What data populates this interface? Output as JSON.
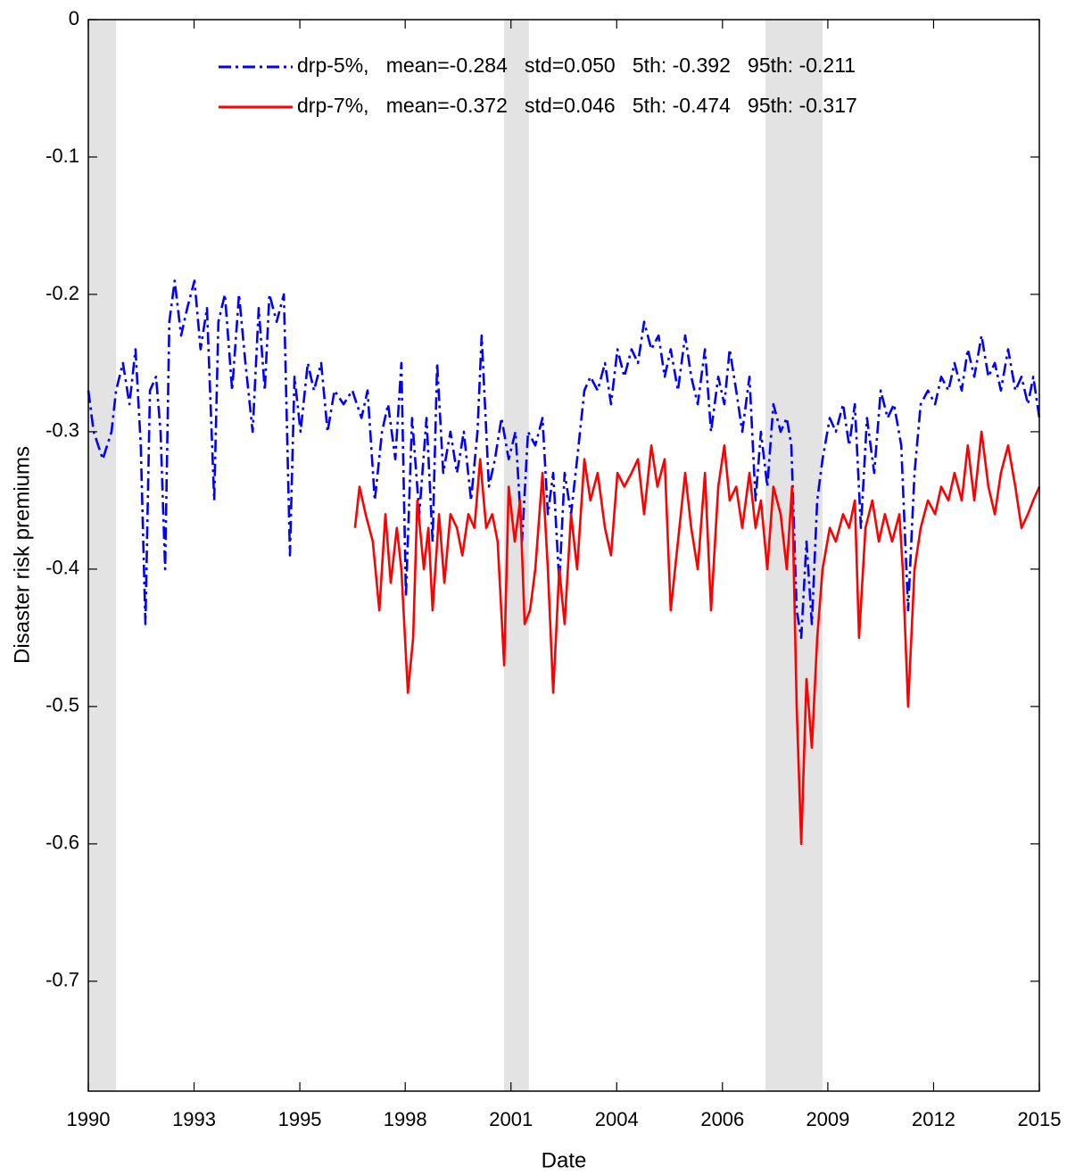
{
  "chart_data": {
    "type": "line",
    "xlabel": "Date",
    "ylabel": "Disaster risk premiums",
    "xlim": [
      1990,
      2015
    ],
    "ylim": [
      -0.78,
      0
    ],
    "xticks": [
      1990,
      {
        "value": 1992.78,
        "label": "1993"
      },
      {
        "value": 1995.56,
        "label": "1995"
      },
      {
        "value": 1998.33,
        "label": "1998"
      },
      {
        "value": 2001.11,
        "label": "2001"
      },
      {
        "value": 2003.89,
        "label": "2004"
      },
      {
        "value": 2006.67,
        "label": "2006"
      },
      {
        "value": 2009.44,
        "label": "2009"
      },
      {
        "value": 2012.22,
        "label": "2012"
      },
      2015
    ],
    "yticks": [
      0,
      -0.1,
      -0.2,
      -0.3,
      -0.4,
      -0.5,
      -0.6,
      -0.7
    ],
    "grid": false,
    "legend": "top",
    "shading": [
      [
        1990,
        1990.73
      ],
      [
        2000.93,
        2001.58
      ],
      [
        2007.8,
        2009.3
      ]
    ],
    "shading_color": "#e3e3e3",
    "series": [
      {
        "name": "drp-5%,   mean=-0.284   std=0.050   5th: -0.392   95th: -0.211",
        "color": "#0000ff",
        "style": "dash-dot",
        "x": [
          1990.0,
          1990.14,
          1990.38,
          1990.61,
          1990.73,
          1990.91,
          1991.08,
          1991.24,
          1991.38,
          1991.5,
          1991.62,
          1991.78,
          1991.9,
          1992.02,
          1992.13,
          1992.27,
          1992.44,
          1992.6,
          1992.79,
          1992.95,
          1993.12,
          1993.31,
          1993.42,
          1993.59,
          1993.78,
          1993.96,
          1994.13,
          1994.32,
          1994.48,
          1994.64,
          1994.76,
          1994.95,
          1995.14,
          1995.3,
          1995.42,
          1995.58,
          1995.77,
          1995.93,
          1996.12,
          1996.29,
          1996.47,
          1996.71,
          1996.94,
          1997.18,
          1997.34,
          1997.53,
          1997.72,
          1997.88,
          1998.07,
          1998.23,
          1998.35,
          1998.51,
          1998.7,
          1998.89,
          1999.05,
          1999.17,
          1999.33,
          1999.52,
          1999.69,
          1999.87,
          2000.06,
          2000.23,
          2000.34,
          2000.53,
          2000.69,
          2000.86,
          2001.05,
          2001.23,
          2001.4,
          2001.56,
          2001.75,
          2001.94,
          2002.08,
          2002.22,
          2002.38,
          2002.52,
          2002.69,
          2002.85,
          2003.04,
          2003.2,
          2003.39,
          2003.58,
          2003.74,
          2003.91,
          2004.09,
          2004.28,
          2004.45,
          2004.61,
          2004.8,
          2004.99,
          2005.15,
          2005.31,
          2005.5,
          2005.69,
          2005.85,
          2006.02,
          2006.21,
          2006.37,
          2006.56,
          2006.72,
          2006.86,
          2007.03,
          2007.19,
          2007.38,
          2007.54,
          2007.68,
          2007.85,
          2008.01,
          2008.2,
          2008.36,
          2008.48,
          2008.62,
          2008.74,
          2008.88,
          2009.02,
          2009.16,
          2009.3,
          2009.49,
          2009.65,
          2009.84,
          2010.0,
          2010.15,
          2010.31,
          2010.47,
          2010.66,
          2010.83,
          2011.01,
          2011.18,
          2011.37,
          2011.55,
          2011.72,
          2011.88,
          2012.07,
          2012.26,
          2012.42,
          2012.61,
          2012.77,
          2012.96,
          2013.12,
          2013.29,
          2013.48,
          2013.66,
          2013.83,
          2013.99,
          2014.18,
          2014.37,
          2014.53,
          2014.7,
          2014.84,
          2015.0
        ],
        "values": [
          -0.27,
          -0.3,
          -0.32,
          -0.3,
          -0.27,
          -0.25,
          -0.28,
          -0.24,
          -0.31,
          -0.44,
          -0.27,
          -0.26,
          -0.3,
          -0.4,
          -0.22,
          -0.19,
          -0.23,
          -0.21,
          -0.19,
          -0.24,
          -0.21,
          -0.35,
          -0.22,
          -0.2,
          -0.27,
          -0.2,
          -0.25,
          -0.3,
          -0.21,
          -0.27,
          -0.2,
          -0.22,
          -0.2,
          -0.39,
          -0.26,
          -0.3,
          -0.25,
          -0.27,
          -0.25,
          -0.3,
          -0.27,
          -0.28,
          -0.27,
          -0.29,
          -0.27,
          -0.35,
          -0.3,
          -0.28,
          -0.32,
          -0.25,
          -0.42,
          -0.29,
          -0.36,
          -0.29,
          -0.38,
          -0.25,
          -0.33,
          -0.3,
          -0.33,
          -0.3,
          -0.35,
          -0.3,
          -0.23,
          -0.34,
          -0.32,
          -0.29,
          -0.32,
          -0.3,
          -0.38,
          -0.3,
          -0.31,
          -0.29,
          -0.36,
          -0.33,
          -0.41,
          -0.33,
          -0.36,
          -0.32,
          -0.27,
          -0.26,
          -0.27,
          -0.25,
          -0.28,
          -0.24,
          -0.26,
          -0.24,
          -0.25,
          -0.22,
          -0.24,
          -0.23,
          -0.26,
          -0.24,
          -0.27,
          -0.23,
          -0.26,
          -0.28,
          -0.24,
          -0.3,
          -0.26,
          -0.28,
          -0.24,
          -0.27,
          -0.3,
          -0.26,
          -0.35,
          -0.3,
          -0.34,
          -0.28,
          -0.3,
          -0.29,
          -0.31,
          -0.43,
          -0.45,
          -0.38,
          -0.44,
          -0.35,
          -0.32,
          -0.29,
          -0.3,
          -0.28,
          -0.31,
          -0.28,
          -0.37,
          -0.29,
          -0.33,
          -0.27,
          -0.29,
          -0.28,
          -0.31,
          -0.43,
          -0.33,
          -0.28,
          -0.27,
          -0.28,
          -0.26,
          -0.27,
          -0.25,
          -0.27,
          -0.24,
          -0.26,
          -0.23,
          -0.26,
          -0.25,
          -0.27,
          -0.24,
          -0.27,
          -0.26,
          -0.28,
          -0.26,
          -0.29
        ]
      },
      {
        "name": "drp-7%,   mean=-0.372   std=0.046   5th: -0.474   95th: -0.317",
        "color": "#ff0000",
        "style": "solid",
        "x": [
          1997.01,
          1997.13,
          1997.29,
          1997.48,
          1997.65,
          1997.81,
          1997.95,
          1998.11,
          1998.23,
          1998.4,
          1998.54,
          1998.65,
          1998.82,
          1998.94,
          1999.05,
          1999.22,
          1999.36,
          1999.52,
          1999.69,
          1999.83,
          1999.99,
          2000.15,
          2000.3,
          2000.46,
          2000.62,
          2000.76,
          2000.93,
          2001.05,
          2001.21,
          2001.35,
          2001.47,
          2001.61,
          2001.75,
          2001.94,
          2002.08,
          2002.22,
          2002.38,
          2002.52,
          2002.69,
          2002.85,
          2003.04,
          2003.2,
          2003.39,
          2003.58,
          2003.74,
          2003.91,
          2004.09,
          2004.28,
          2004.45,
          2004.61,
          2004.8,
          2004.96,
          2005.15,
          2005.31,
          2005.5,
          2005.69,
          2005.85,
          2006.02,
          2006.21,
          2006.37,
          2006.56,
          2006.72,
          2006.86,
          2007.03,
          2007.19,
          2007.38,
          2007.54,
          2007.68,
          2007.85,
          2008.01,
          2008.2,
          2008.36,
          2008.5,
          2008.62,
          2008.74,
          2008.88,
          2009.02,
          2009.16,
          2009.3,
          2009.49,
          2009.65,
          2009.84,
          2010.0,
          2010.15,
          2010.26,
          2010.43,
          2010.61,
          2010.78,
          2010.94,
          2011.13,
          2011.32,
          2011.41,
          2011.55,
          2011.72,
          2011.88,
          2012.07,
          2012.26,
          2012.42,
          2012.61,
          2012.77,
          2012.96,
          2013.12,
          2013.29,
          2013.48,
          2013.66,
          2013.83,
          2013.99,
          2014.18,
          2014.37,
          2014.53,
          2014.7,
          2014.84,
          2015.0
        ],
        "values": [
          -0.37,
          -0.34,
          -0.36,
          -0.38,
          -0.43,
          -0.36,
          -0.41,
          -0.37,
          -0.4,
          -0.49,
          -0.45,
          -0.35,
          -0.4,
          -0.37,
          -0.43,
          -0.36,
          -0.41,
          -0.36,
          -0.37,
          -0.39,
          -0.36,
          -0.37,
          -0.32,
          -0.37,
          -0.36,
          -0.38,
          -0.47,
          -0.34,
          -0.38,
          -0.35,
          -0.44,
          -0.43,
          -0.4,
          -0.33,
          -0.4,
          -0.49,
          -0.4,
          -0.44,
          -0.36,
          -0.4,
          -0.32,
          -0.35,
          -0.33,
          -0.37,
          -0.39,
          -0.33,
          -0.34,
          -0.33,
          -0.32,
          -0.36,
          -0.31,
          -0.34,
          -0.32,
          -0.43,
          -0.38,
          -0.33,
          -0.37,
          -0.4,
          -0.33,
          -0.43,
          -0.34,
          -0.31,
          -0.35,
          -0.34,
          -0.37,
          -0.33,
          -0.37,
          -0.35,
          -0.4,
          -0.34,
          -0.36,
          -0.4,
          -0.34,
          -0.5,
          -0.6,
          -0.48,
          -0.53,
          -0.45,
          -0.4,
          -0.37,
          -0.38,
          -0.36,
          -0.37,
          -0.35,
          -0.45,
          -0.37,
          -0.35,
          -0.38,
          -0.36,
          -0.38,
          -0.36,
          -0.4,
          -0.5,
          -0.4,
          -0.37,
          -0.35,
          -0.36,
          -0.34,
          -0.35,
          -0.33,
          -0.35,
          -0.31,
          -0.35,
          -0.3,
          -0.34,
          -0.36,
          -0.33,
          -0.31,
          -0.34,
          -0.37,
          -0.36,
          -0.35,
          -0.34
        ]
      }
    ]
  }
}
